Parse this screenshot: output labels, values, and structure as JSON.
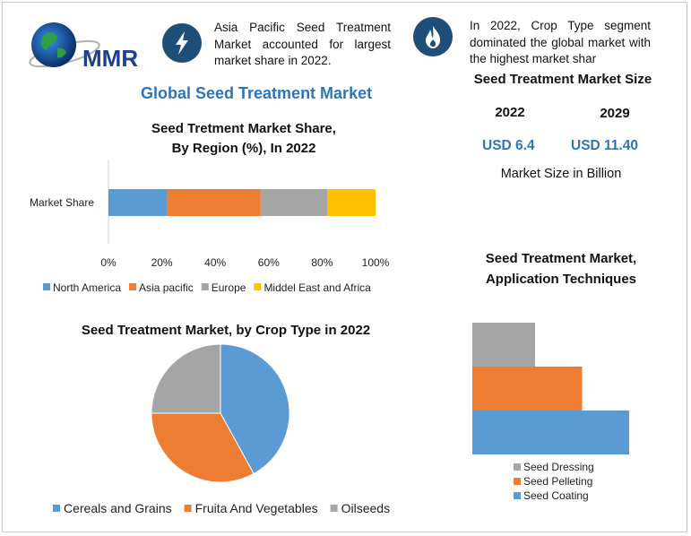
{
  "brand": {
    "name": "MMR"
  },
  "notes": [
    {
      "text": "Asia Pacific Seed Treatment Market accounted for largest market share in 2022.",
      "icon": "lightning-icon"
    },
    {
      "text": "In 2022, Crop Type segment dominated the global market with the highest market shar",
      "icon": "flame-icon"
    }
  ],
  "main_title": "Global Seed Treatment Market",
  "market_size": {
    "title": "Seed Treatment Market Size",
    "years": [
      "2022",
      "2029"
    ],
    "values": [
      "USD 6.4",
      "USD 11.40"
    ],
    "caption": "Market Size in Billion"
  },
  "chart_data": [
    {
      "type": "bar",
      "orientation": "horizontal",
      "stacked": true,
      "title": "Seed Tretment Market Share, By Region (%), In 2022",
      "title_lines": [
        "Seed Tretment Market Share,",
        "By Region (%), In 2022"
      ],
      "categories": [
        "Market Share"
      ],
      "series": [
        {
          "name": "North America",
          "values": [
            22
          ],
          "color": "#5b9bd5"
        },
        {
          "name": "Asia pacific",
          "values": [
            35
          ],
          "color": "#ed7d31"
        },
        {
          "name": "Europe",
          "values": [
            25
          ],
          "color": "#a5a5a5"
        },
        {
          "name": "Middel East and Africa",
          "values": [
            18
          ],
          "color": "#ffc000"
        }
      ],
      "xlim": [
        0,
        100
      ],
      "xticks": [
        "0%",
        "20%",
        "40%",
        "60%",
        "80%",
        "100%"
      ],
      "legend": "bottom"
    },
    {
      "type": "pie",
      "title": "Seed Treatment Market, by Crop Type in 2022",
      "labels": [
        "Cereals and Grains",
        "Fruita And Vegetables",
        "Oilseeds"
      ],
      "values": [
        42,
        33,
        25
      ],
      "colors": [
        "#5b9bd5",
        "#ed7d31",
        "#a5a5a5"
      ],
      "legend": "bottom"
    },
    {
      "type": "bar",
      "orientation": "horizontal",
      "title": "Seed Treatment Market, Application Techniques",
      "title_lines": [
        "Seed Treatment Market,",
        "Application Techniques"
      ],
      "categories": [
        "Seed Dressing",
        "Seed Pelleting",
        "Seed Coating"
      ],
      "values": [
        40,
        70,
        100
      ],
      "colors": [
        "#a5a5a5",
        "#ed7d31",
        "#5b9bd5"
      ],
      "legend": "bottom"
    }
  ]
}
